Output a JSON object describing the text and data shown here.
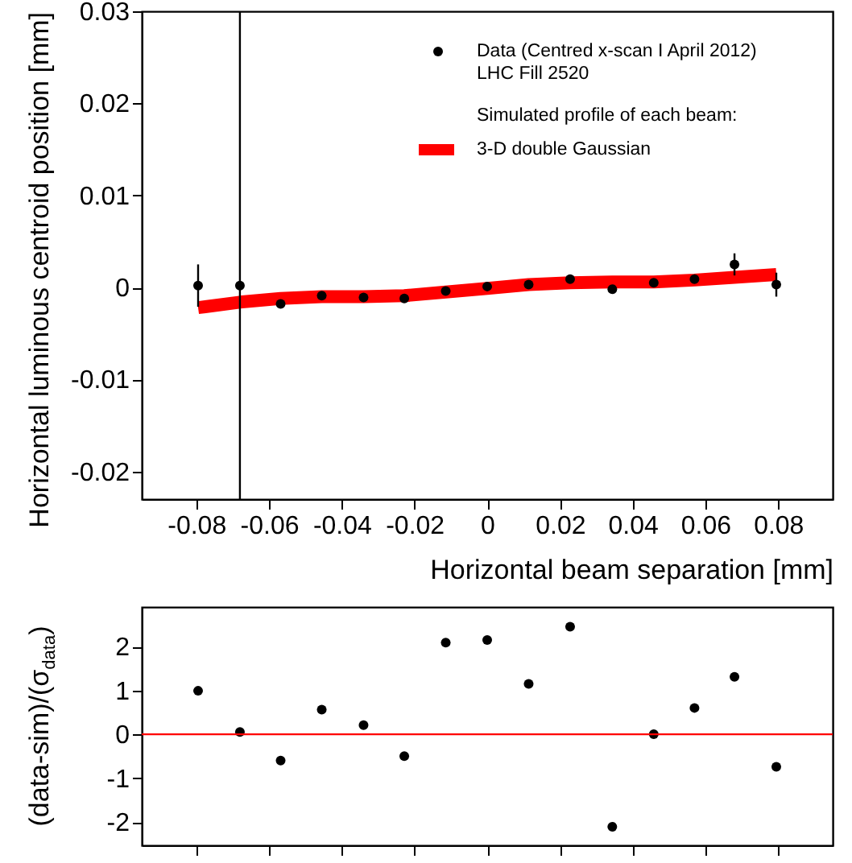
{
  "chart_data": [
    {
      "type": "scatter",
      "xlabel": "Horizontal beam separation [mm]",
      "ylabel": "Horizontal luminous centroid position [mm]",
      "legend_title": "Simulated profile of each beam:",
      "legend": "top right",
      "grid": false,
      "xlim": [
        -0.095,
        0.095
      ],
      "xticks": [
        -0.08,
        -0.06,
        -0.04,
        -0.02,
        0,
        0.02,
        0.04,
        0.06,
        0.08
      ],
      "ylim": [
        -0.023,
        0.03
      ],
      "yticks": [
        -0.02,
        -0.01,
        0,
        0.01,
        0.02,
        0.03
      ],
      "series": [
        {
          "name": "Data (Centred x-scan I April 2012)\nLHC Fill 2520",
          "type": "scatter",
          "marker": "circle",
          "color": "#000000",
          "x": [
            -0.0795,
            -0.068,
            -0.0568,
            -0.0455,
            -0.034,
            -0.0228,
            -0.0114,
            0,
            0.0114,
            0.0228,
            0.0344,
            0.0458,
            0.057,
            0.068,
            0.0795
          ],
          "values": [
            0.0002,
            0.0002,
            -0.0018,
            -0.0009,
            -0.0011,
            -0.0012,
            -0.0004,
            0.0001,
            0.0003,
            0.0009,
            -0.0002,
            0.0005,
            0.0009,
            0.0025,
            0.0003
          ],
          "errors": [
            0.0023,
            [
              -0.023,
              0.03
            ],
            null,
            null,
            null,
            null,
            null,
            null,
            null,
            null,
            null,
            null,
            null,
            0.0012,
            0.0013
          ]
        },
        {
          "name": "3-D double Gaussian",
          "type": "line",
          "marker": "none",
          "color": "#ff0000",
          "line_style": "solid",
          "x": [
            -0.0795,
            -0.068,
            -0.0568,
            -0.0455,
            -0.034,
            -0.0228,
            -0.0114,
            0,
            0.0114,
            0.0228,
            0.0344,
            0.0458,
            0.057,
            0.068,
            0.0795
          ],
          "values": [
            -0.0022,
            -0.0016,
            -0.0012,
            -0.001,
            -0.001,
            -0.0009,
            -0.0005,
            -0.0001,
            0.0003,
            0.0005,
            0.0006,
            0.0006,
            0.0008,
            0.0011,
            0.0014
          ]
        }
      ]
    },
    {
      "type": "scatter",
      "ylabel": "(data-sim)/(σ$_{data}$)",
      "marker": "circle",
      "grid": false,
      "tick_labels": "y",
      "xlim": [
        -0.095,
        0.095
      ],
      "xticks": [
        -0.08,
        -0.06,
        -0.04,
        -0.02,
        0,
        0.02,
        0.04,
        0.06,
        0.08
      ],
      "ylim": [
        -2.53,
        2.9
      ],
      "yticks": [
        -2,
        -1,
        0,
        1,
        2
      ],
      "ref_lines": [
        {
          "axis": "y",
          "value": 0,
          "color": "#ff0000"
        }
      ],
      "series": [
        {
          "color": "#000000",
          "x": [
            -0.0795,
            -0.068,
            -0.0568,
            -0.0455,
            -0.034,
            -0.0228,
            -0.0114,
            0,
            0.0114,
            0.0228,
            0.0344,
            0.0458,
            0.057,
            0.068,
            0.0795
          ],
          "values": [
            0.99,
            0.05,
            -0.6,
            0.56,
            0.21,
            -0.5,
            2.09,
            2.15,
            1.15,
            2.45,
            -2.11,
            0,
            0.6,
            1.31,
            -0.74
          ]
        }
      ]
    }
  ]
}
